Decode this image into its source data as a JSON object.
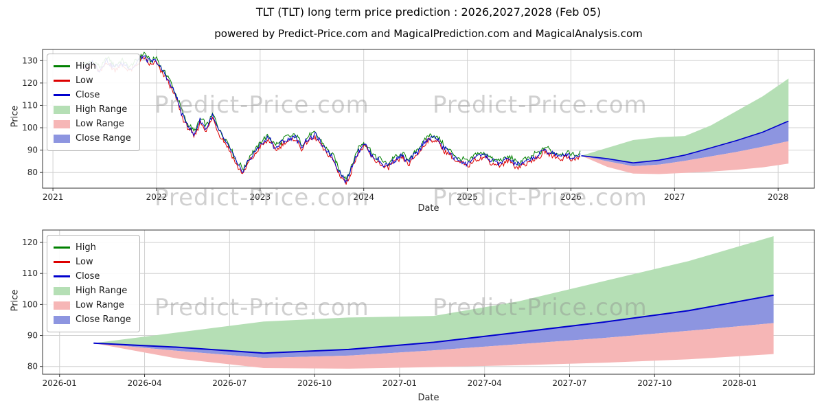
{
  "figure": {
    "watermark": "Predict-Price.com"
  },
  "colors": {
    "high_line": "#008000",
    "low_line": "#dd0000",
    "close_line": "#0000cd",
    "high_range": "#b5dfb5",
    "low_range": "#f6b6b6",
    "close_range": "#8d95e0",
    "grid": "#d0d0d0",
    "spine": "#333333",
    "text": "#262626",
    "watermark": "#8c8c8c"
  },
  "legend": [
    {
      "label": "High",
      "type": "line",
      "color_key": "high_line"
    },
    {
      "label": "Low",
      "type": "line",
      "color_key": "low_line"
    },
    {
      "label": "Close",
      "type": "line",
      "color_key": "close_line"
    },
    {
      "label": "High Range",
      "type": "fill",
      "color_key": "high_range"
    },
    {
      "label": "Low Range",
      "type": "fill",
      "color_key": "low_range"
    },
    {
      "label": "Close Range",
      "type": "fill",
      "color_key": "close_range"
    }
  ],
  "chart_data": [
    {
      "type": "line",
      "name": "full-history-with-forecast",
      "title": "TLT (TLT) long term price prediction : 2026,2027,2028 (Feb 05)",
      "subtitle": "powered by Predict-Price.com and MagicalPrediction.com and MagicalAnalysis.com",
      "xlabel": "Date",
      "ylabel": "Price",
      "legend_position": "upper left",
      "grid": true,
      "xlim": [
        2020.9,
        2028.35
      ],
      "ylim": [
        73,
        135
      ],
      "xticks": [
        {
          "v": 2021,
          "l": "2021"
        },
        {
          "v": 2022,
          "l": "2022"
        },
        {
          "v": 2023,
          "l": "2023"
        },
        {
          "v": 2024,
          "l": "2024"
        },
        {
          "v": 2025,
          "l": "2025"
        },
        {
          "v": 2026,
          "l": "2026"
        },
        {
          "v": 2027,
          "l": "2027"
        },
        {
          "v": 2028,
          "l": "2028"
        }
      ],
      "yticks": [
        80,
        90,
        100,
        110,
        120,
        130
      ],
      "series_historical": {
        "note": "High/Low/Close overlap closely; close keypoints, high=close+spread, low=close-spread",
        "hl_spread": 1.0,
        "x": [
          2021.3,
          2021.38,
          2021.45,
          2021.52,
          2021.6,
          2021.68,
          2021.75,
          2021.82,
          2021.88,
          2021.95,
          2022.0,
          2022.06,
          2022.12,
          2022.18,
          2022.24,
          2022.3,
          2022.36,
          2022.42,
          2022.48,
          2022.54,
          2022.6,
          2022.66,
          2022.72,
          2022.78,
          2022.84,
          2022.9,
          2022.96,
          2023.02,
          2023.08,
          2023.14,
          2023.2,
          2023.27,
          2023.33,
          2023.4,
          2023.47,
          2023.53,
          2023.6,
          2023.66,
          2023.72,
          2023.78,
          2023.83,
          2023.89,
          2023.95,
          2024.0,
          2024.06,
          2024.12,
          2024.18,
          2024.24,
          2024.3,
          2024.37,
          2024.44,
          2024.5,
          2024.56,
          2024.62,
          2024.68,
          2024.74,
          2024.8,
          2024.87,
          2024.93,
          2025.0,
          2025.06,
          2025.12,
          2025.19,
          2025.25,
          2025.31,
          2025.38,
          2025.44,
          2025.5,
          2025.56,
          2025.62,
          2025.69,
          2025.75,
          2025.81,
          2025.88,
          2025.94,
          2026.0,
          2026.1
        ],
        "close": [
          127,
          129,
          126,
          130,
          127,
          129,
          126,
          130,
          132,
          129,
          130,
          125,
          121,
          115,
          107,
          101,
          97,
          103,
          100,
          105,
          99,
          94,
          90,
          83,
          81,
          86,
          90,
          93,
          96,
          91,
          93,
          95,
          96,
          92,
          95,
          97,
          92,
          89,
          85,
          79,
          76,
          83,
          90,
          93,
          89,
          86,
          84,
          83,
          86,
          87,
          85,
          88,
          92,
          95,
          96,
          93,
          90,
          87,
          85,
          84,
          86,
          88,
          87,
          85,
          84,
          86,
          85,
          83,
          85,
          86,
          88,
          90,
          89,
          87,
          88,
          87,
          87.5
        ]
      },
      "forecast": {
        "x": [
          2026.1,
          2026.35,
          2026.6,
          2026.85,
          2027.1,
          2027.35,
          2027.6,
          2027.85,
          2028.1
        ],
        "close": [
          87.5,
          86.2,
          84.3,
          85.5,
          87.8,
          91.0,
          94.3,
          98.0,
          103.0
        ],
        "close_low": [
          87.5,
          85.0,
          82.8,
          83.5,
          85.2,
          87.2,
          89.2,
          91.5,
          94.0
        ],
        "low": [
          87.5,
          82.5,
          79.5,
          79.3,
          79.8,
          80.4,
          81.2,
          82.3,
          84.0
        ],
        "high": [
          87.5,
          91.0,
          94.5,
          95.8,
          96.3,
          101.0,
          107.5,
          114.0,
          122.0
        ]
      }
    },
    {
      "type": "line",
      "name": "forecast-detail",
      "xlabel": "Date",
      "ylabel": "Price",
      "legend_position": "upper left",
      "grid": true,
      "xlim": [
        2025.95,
        2028.22
      ],
      "ylim": [
        77.5,
        124
      ],
      "xticks": [
        {
          "v": 2026.0,
          "l": "2026-01"
        },
        {
          "v": 2026.25,
          "l": "2026-04"
        },
        {
          "v": 2026.5,
          "l": "2026-07"
        },
        {
          "v": 2026.75,
          "l": "2026-10"
        },
        {
          "v": 2027.0,
          "l": "2027-01"
        },
        {
          "v": 2027.25,
          "l": "2027-04"
        },
        {
          "v": 2027.5,
          "l": "2027-07"
        },
        {
          "v": 2027.75,
          "l": "2027-10"
        },
        {
          "v": 2028.0,
          "l": "2028-01"
        }
      ],
      "yticks": [
        80,
        90,
        100,
        110,
        120
      ],
      "forecast": {
        "x": [
          2026.1,
          2026.35,
          2026.6,
          2026.85,
          2027.1,
          2027.35,
          2027.6,
          2027.85,
          2028.1
        ],
        "close": [
          87.5,
          86.2,
          84.3,
          85.5,
          87.8,
          91.0,
          94.3,
          98.0,
          103.0
        ],
        "close_low": [
          87.5,
          85.0,
          82.8,
          83.5,
          85.2,
          87.2,
          89.2,
          91.5,
          94.0
        ],
        "low": [
          87.5,
          82.5,
          79.5,
          79.3,
          79.8,
          80.4,
          81.2,
          82.3,
          84.0
        ],
        "high": [
          87.5,
          91.0,
          94.5,
          95.8,
          96.3,
          101.0,
          107.5,
          114.0,
          122.0
        ]
      }
    }
  ]
}
